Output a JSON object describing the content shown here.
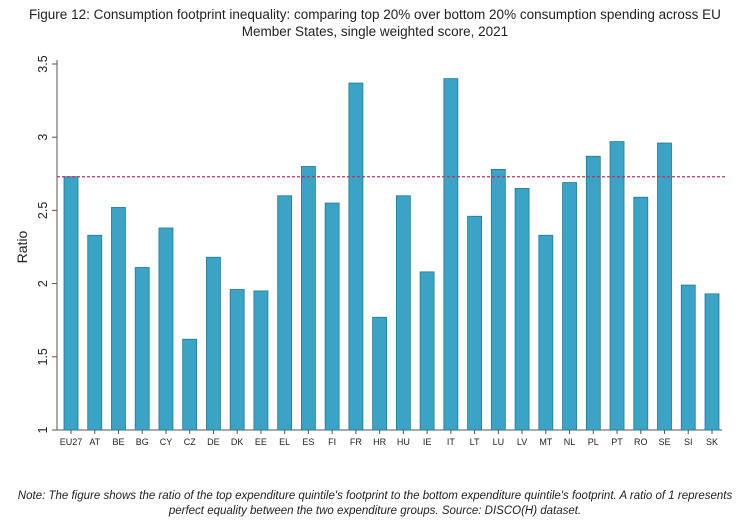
{
  "figure": {
    "title": "Figure 12: Consumption footprint inequality: comparing top 20% over bottom 20% consumption spending across EU Member States, single weighted score, 2021",
    "note": "Note: The figure shows the ratio of the top expenditure quintile's footprint to the bottom expenditure quintile's footprint. A ratio of 1 represents perfect equality between the two expenditure groups. Source: DISCO(H) dataset."
  },
  "chart_data": {
    "type": "bar",
    "title": "Figure 12: Consumption footprint inequality: comparing top 20% over bottom 20% consumption spending across EU Member States, single weighted score, 2021",
    "xlabel": "",
    "ylabel": "Ratio",
    "ylim": [
      1,
      3.5
    ],
    "yticks": [
      1,
      1.5,
      2,
      2.5,
      3,
      3.5
    ],
    "ytick_labels": [
      "1",
      "1.5",
      "2",
      "2.5",
      "3",
      "3.5"
    ],
    "categories": [
      "EU27",
      "AT",
      "BE",
      "BG",
      "CY",
      "CZ",
      "DE",
      "DK",
      "EE",
      "EL",
      "ES",
      "FI",
      "FR",
      "HR",
      "HU",
      "IE",
      "IT",
      "LT",
      "LU",
      "LV",
      "MT",
      "NL",
      "PL",
      "PT",
      "RO",
      "SE",
      "SI",
      "SK"
    ],
    "values": [
      2.73,
      2.33,
      2.52,
      2.11,
      2.38,
      1.62,
      2.18,
      1.96,
      1.95,
      2.6,
      2.8,
      2.55,
      3.37,
      1.77,
      2.6,
      2.08,
      3.4,
      2.46,
      2.78,
      2.65,
      2.33,
      2.69,
      2.87,
      2.97,
      2.59,
      2.96,
      1.99,
      1.93
    ],
    "reference_line": 2.73,
    "grid": false,
    "legend": "none",
    "colors": {
      "bar": "#3ba3c6",
      "bar_edge": "#1f7a99",
      "reference_line": "#c0305a",
      "axis": "#555555"
    }
  }
}
